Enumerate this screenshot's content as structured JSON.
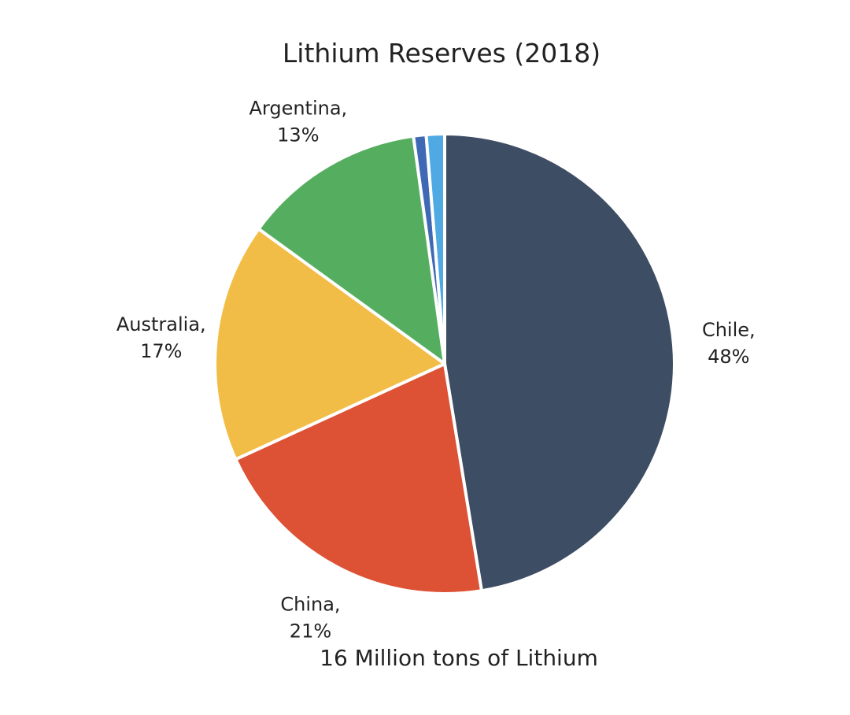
{
  "chart_data": {
    "type": "pie",
    "title": "Lithium Reserves (2018)",
    "subtitle": "16 Million tons of Lithium",
    "start_angle_deg": 0,
    "direction": "clockwise",
    "slices": [
      {
        "id": "chile",
        "label": "Chile,",
        "percent_label": "48%",
        "value": 48.0,
        "color": "#3d4d63",
        "show_label": true
      },
      {
        "id": "china",
        "label": "China,",
        "percent_label": "21%",
        "value": 21.0,
        "color": "#dd5134",
        "show_label": true
      },
      {
        "id": "australia",
        "label": "Australia,",
        "percent_label": "17%",
        "value": 17.0,
        "color": "#f2bd46",
        "show_label": true
      },
      {
        "id": "argentina",
        "label": "Argentina,",
        "percent_label": "13%",
        "value": 13.0,
        "color": "#55ae60",
        "show_label": true
      },
      {
        "id": "other-a",
        "label": "",
        "percent_label": "",
        "value": 0.9,
        "color": "#3f69b5",
        "show_label": false
      },
      {
        "id": "other-b",
        "label": "",
        "percent_label": "",
        "value": 1.3,
        "color": "#4fa9e2",
        "show_label": false
      }
    ]
  }
}
